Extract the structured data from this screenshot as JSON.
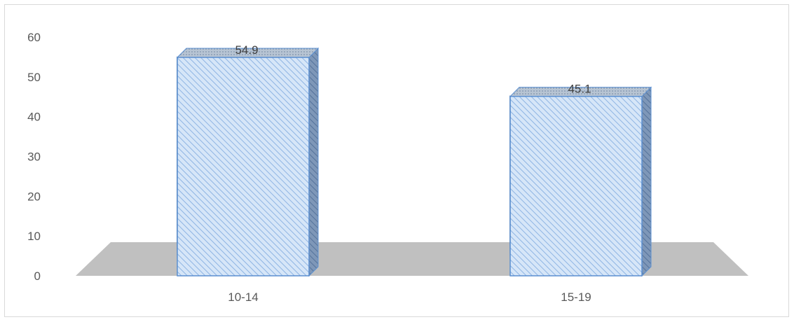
{
  "chart_data": {
    "type": "bar",
    "categories": [
      "10-14",
      "15-19"
    ],
    "values": [
      54.9,
      45.1
    ],
    "data_labels": [
      "54.9",
      "45.1"
    ],
    "yticks": [
      "0",
      "10",
      "20",
      "30",
      "40",
      "50",
      "60"
    ],
    "ylim": [
      0,
      60
    ],
    "grid": false,
    "legend": "none",
    "three_d": true,
    "colors": {
      "bar_fill": "#cfe2f7",
      "bar_hatch": "#8eb4e3",
      "bar_edge": "#5b8fd0",
      "bar_top": "#a9b8c9",
      "bar_side": "#6d89ad",
      "floor": "#c0c0c0"
    }
  }
}
